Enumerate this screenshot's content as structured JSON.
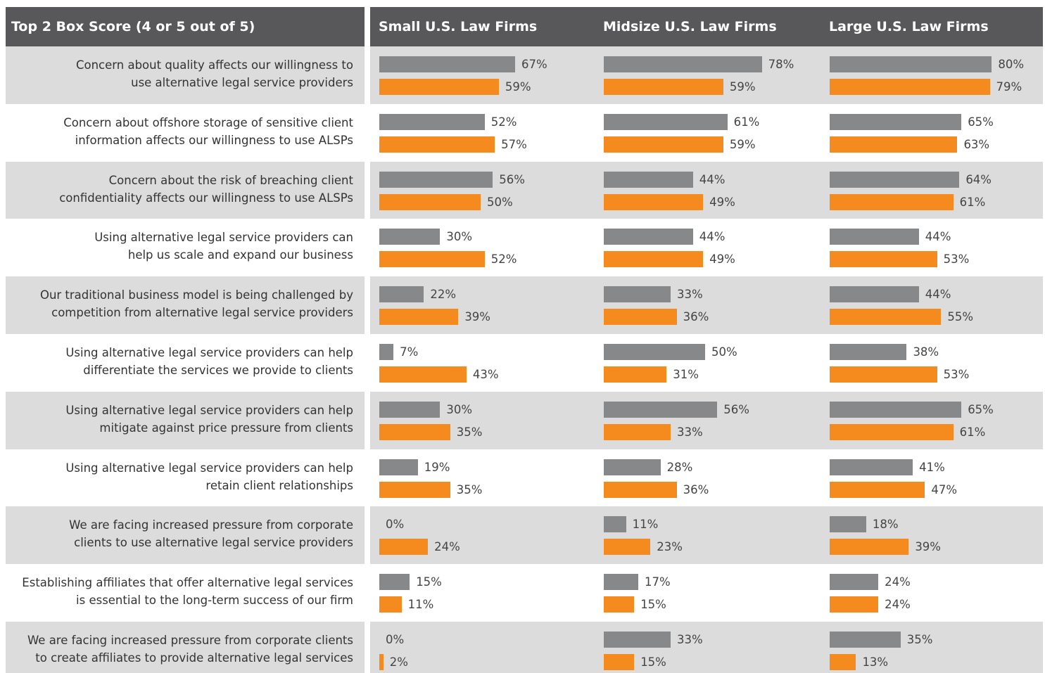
{
  "chart_data": {
    "type": "bar",
    "title": "Top 2 Box Score (4 or 5 out of 5)",
    "categories": [
      [
        "Concern about quality affects our willingness to",
        "use alternative legal service providers"
      ],
      [
        "Concern about offshore storage of sensitive client",
        "information affects our willingness to use ALSPs"
      ],
      [
        "Concern about the risk of breaching client",
        "confidentiality affects our willingness to use ALSPs"
      ],
      [
        "Using alternative legal service providers can",
        "help us scale and expand our business"
      ],
      [
        "Our traditional business model is being challenged by",
        "competition from alternative legal service providers"
      ],
      [
        "Using alternative legal service providers can help",
        "differentiate the services we provide to clients"
      ],
      [
        "Using alternative legal service providers can help",
        "mitigate against price pressure from clients"
      ],
      [
        "Using alternative legal service providers can help",
        "retain client relationships"
      ],
      [
        "We are facing increased pressure from corporate",
        "clients to use alternative legal service providers"
      ],
      [
        "Establishing affiliates that offer alternative legal services",
        "is essential to the long-term success of our firm"
      ],
      [
        "We are facing increased pressure from corporate clients",
        "to create affiliates to provide alternative legal services"
      ]
    ],
    "panels": [
      {
        "title": "Small U.S. Law Firms",
        "series": [
          {
            "color": "#87888a",
            "values": [
              67,
              52,
              56,
              30,
              22,
              7,
              30,
              19,
              0,
              15,
              0
            ],
            "value_labels": [
              "67%",
              "52%",
              "56%",
              "30%",
              "22%",
              "7%",
              "30%",
              "19%",
              "0%",
              "15%",
              "0%"
            ]
          },
          {
            "color": "#f58b1f",
            "values": [
              59,
              57,
              50,
              52,
              39,
              43,
              35,
              35,
              24,
              11,
              2
            ],
            "value_labels": [
              "59%",
              "57%",
              "50%",
              "52%",
              "39%",
              "43%",
              "35%",
              "35%",
              "24%",
              "11%",
              "2%"
            ]
          }
        ]
      },
      {
        "title": "Midsize U.S. Law Firms",
        "series": [
          {
            "color": "#87888a",
            "values": [
              78,
              61,
              44,
              44,
              33,
              50,
              56,
              28,
              11,
              17,
              33
            ],
            "value_labels": [
              "78%",
              "61%",
              "44%",
              "44%",
              "33%",
              "50%",
              "56%",
              "28%",
              "11%",
              "17%",
              "33%"
            ]
          },
          {
            "color": "#f58b1f",
            "values": [
              59,
              59,
              49,
              49,
              36,
              31,
              33,
              36,
              23,
              15,
              15
            ],
            "value_labels": [
              "59%",
              "59%",
              "49%",
              "49%",
              "36%",
              "31%",
              "33%",
              "36%",
              "23%",
              "15%",
              "15%"
            ]
          }
        ]
      },
      {
        "title": "Large U.S. Law Firms",
        "series": [
          {
            "color": "#87888a",
            "values": [
              80,
              65,
              64,
              44,
              44,
              38,
              65,
              41,
              18,
              24,
              35
            ],
            "value_labels": [
              "80%",
              "65%",
              "64%",
              "44%",
              "44%",
              "38%",
              "65%",
              "41%",
              "18%",
              "24%",
              "35%"
            ]
          },
          {
            "color": "#f58b1f",
            "values": [
              79,
              63,
              61,
              53,
              55,
              53,
              61,
              47,
              39,
              24,
              13
            ],
            "value_labels": [
              "79%",
              "63%",
              "61%",
              "53%",
              "55%",
              "53%",
              "61%",
              "47%",
              "39%",
              "24%",
              "13%"
            ]
          }
        ]
      }
    ]
  }
}
